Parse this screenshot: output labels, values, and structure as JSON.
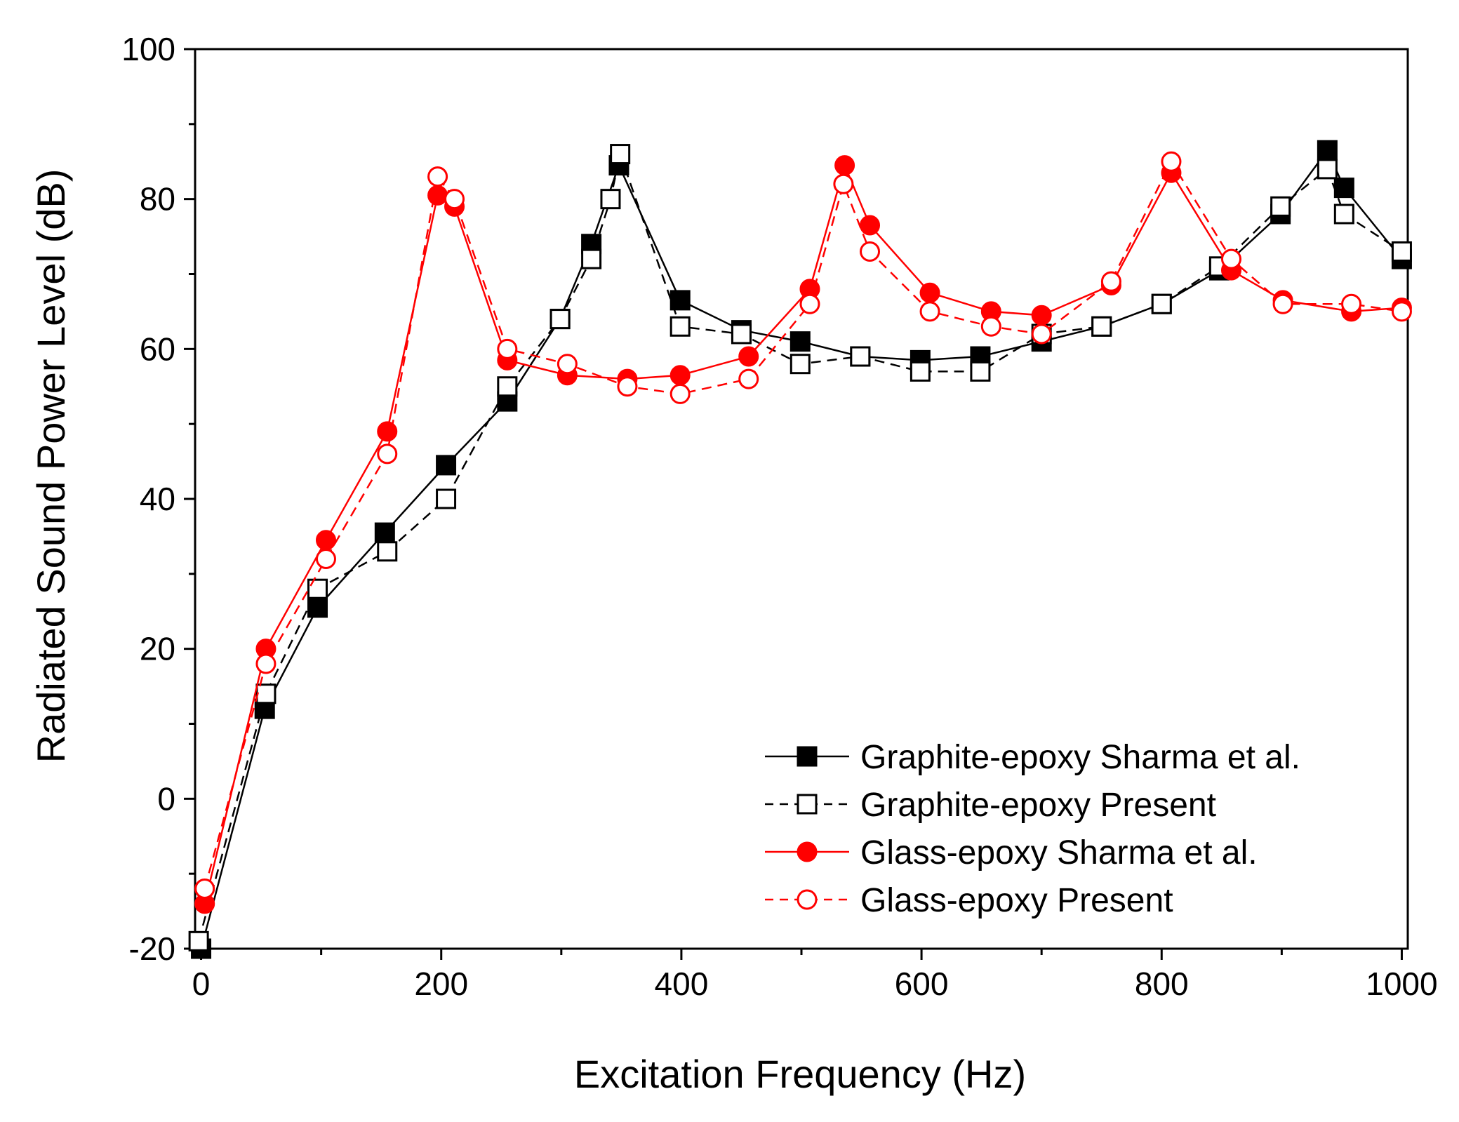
{
  "chart_data": {
    "type": "line",
    "title": "",
    "xlabel": "Excitation Frequency (Hz)",
    "ylabel": "Radiated Sound Power Level (dB)",
    "xlim": [
      -5,
      1005
    ],
    "ylim": [
      -20,
      100
    ],
    "xticks": [
      0,
      200,
      400,
      600,
      800,
      1000
    ],
    "xtick_labels": [
      "0",
      "200",
      "400",
      "600",
      "800",
      "1000"
    ],
    "yticks": [
      -20,
      0,
      20,
      40,
      60,
      80,
      100
    ],
    "ytick_labels": [
      "-20",
      "0",
      "20",
      "40",
      "60",
      "80",
      "100"
    ],
    "grid": false,
    "legend_position": "bottom-right",
    "series": [
      {
        "name": "Graphite-epoxy Sharma et al.",
        "color": "#000000",
        "line": "solid",
        "marker": "filled-square",
        "x": [
          0,
          53,
          97,
          153,
          204,
          255,
          299,
          325,
          348,
          399,
          450,
          499,
          549,
          599,
          649,
          700,
          750,
          800,
          848,
          899,
          938,
          952,
          1000
        ],
        "y": [
          -20,
          12,
          25.5,
          35.5,
          44.5,
          53,
          64,
          74,
          84.5,
          66.5,
          62.5,
          61,
          59,
          58.5,
          59,
          61,
          63,
          66,
          70.5,
          78,
          86.5,
          81.5,
          72
        ]
      },
      {
        "name": "Graphite-epoxy Present",
        "color": "#000000",
        "line": "dashed",
        "marker": "open-square",
        "x": [
          -2,
          54,
          97,
          155,
          204,
          255,
          299,
          325,
          341,
          349,
          399,
          450,
          499,
          549,
          599,
          649,
          700,
          750,
          800,
          848,
          899,
          938,
          952,
          1000
        ],
        "y": [
          -19,
          14,
          28,
          33,
          40,
          55,
          64,
          72,
          80,
          86,
          63,
          62,
          58,
          59,
          57,
          57,
          62,
          63,
          66,
          71,
          79,
          84,
          78,
          73
        ]
      },
      {
        "name": "Glass-epoxy Sharma et al.",
        "color": "#ff0000",
        "line": "solid",
        "marker": "filled-circle",
        "x": [
          3,
          54,
          104,
          155,
          197,
          211,
          255,
          305,
          355,
          399,
          456,
          507,
          536,
          557,
          607,
          658,
          700,
          758,
          808,
          858,
          901,
          958,
          1000
        ],
        "y": [
          -14,
          20,
          34.5,
          49,
          80.5,
          79,
          58.5,
          56.5,
          56,
          56.5,
          59,
          68,
          84.5,
          76.5,
          67.5,
          65,
          64.5,
          68.5,
          83.5,
          70.5,
          66.5,
          65,
          65.5
        ]
      },
      {
        "name": "Glass-epoxy Present",
        "color": "#ff0000",
        "line": "dashed",
        "marker": "open-circle",
        "x": [
          3,
          54,
          104,
          155,
          197,
          211,
          255,
          305,
          355,
          399,
          456,
          507,
          535,
          557,
          607,
          658,
          700,
          758,
          808,
          858,
          901,
          958,
          1000
        ],
        "y": [
          -12,
          18,
          32,
          46,
          83,
          80,
          60,
          58,
          55,
          54,
          56,
          66,
          82,
          73,
          65,
          63,
          62,
          69,
          85,
          72,
          66,
          66,
          65
        ]
      }
    ]
  }
}
